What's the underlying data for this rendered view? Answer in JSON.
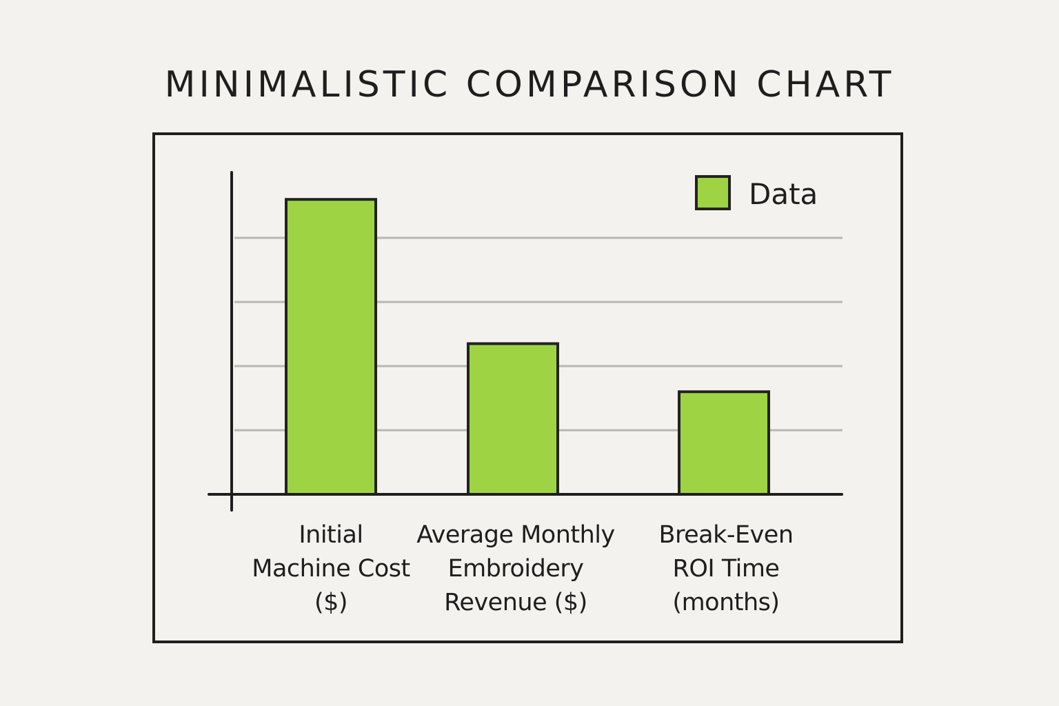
{
  "chart_data": {
    "type": "bar",
    "title": "MINIMALISTIC COMPARISON CHART",
    "categories": [
      [
        "Initial",
        "Machine Cost",
        "($)"
      ],
      [
        "Average Monthly",
        "Embroidery",
        "Revenue ($)"
      ],
      [
        "Break-Even",
        "ROI Time",
        "(months)"
      ]
    ],
    "series": [
      {
        "name": "Data",
        "values": [
          4.6,
          2.35,
          1.6
        ]
      }
    ],
    "ylim": [
      0,
      5
    ],
    "gridlines": [
      1,
      2,
      3,
      4
    ],
    "xlabel": "",
    "ylabel": "",
    "legend": "top-right",
    "colors": {
      "bar_fill": "#9ed443",
      "bar_stroke": "#222222",
      "grid": "#b7b7b7",
      "axis": "#1f1f1f",
      "frame": "#1f1f1f",
      "background": "#f3f2ee"
    }
  }
}
